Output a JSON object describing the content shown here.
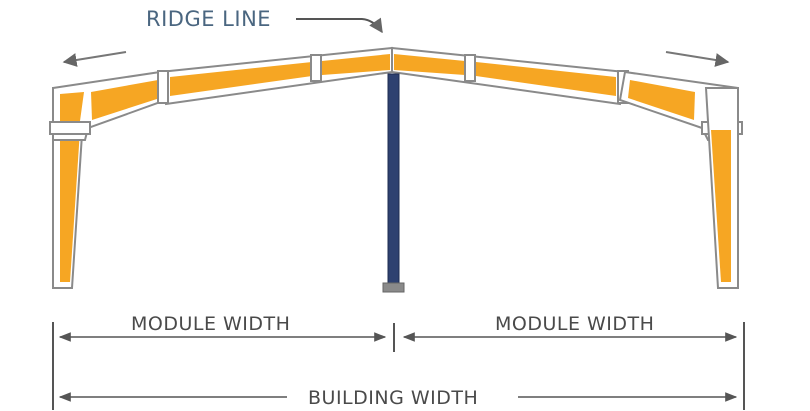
{
  "labels": {
    "ridge_line": "RIDGE LINE",
    "module_width_left": "MODULE WIDTH",
    "module_width_right": "MODULE WIDTH",
    "building_width": "BUILDING WIDTH"
  },
  "colors": {
    "frame_fill": "#f6a623",
    "frame_outline": "#8a8a8a",
    "column": "#2e4170",
    "column_base": "#8a8a8a",
    "dimension_line": "#555555",
    "ridge_text": "#4a6680",
    "dim_text": "#4a4a4a",
    "arrow": "#777777"
  }
}
